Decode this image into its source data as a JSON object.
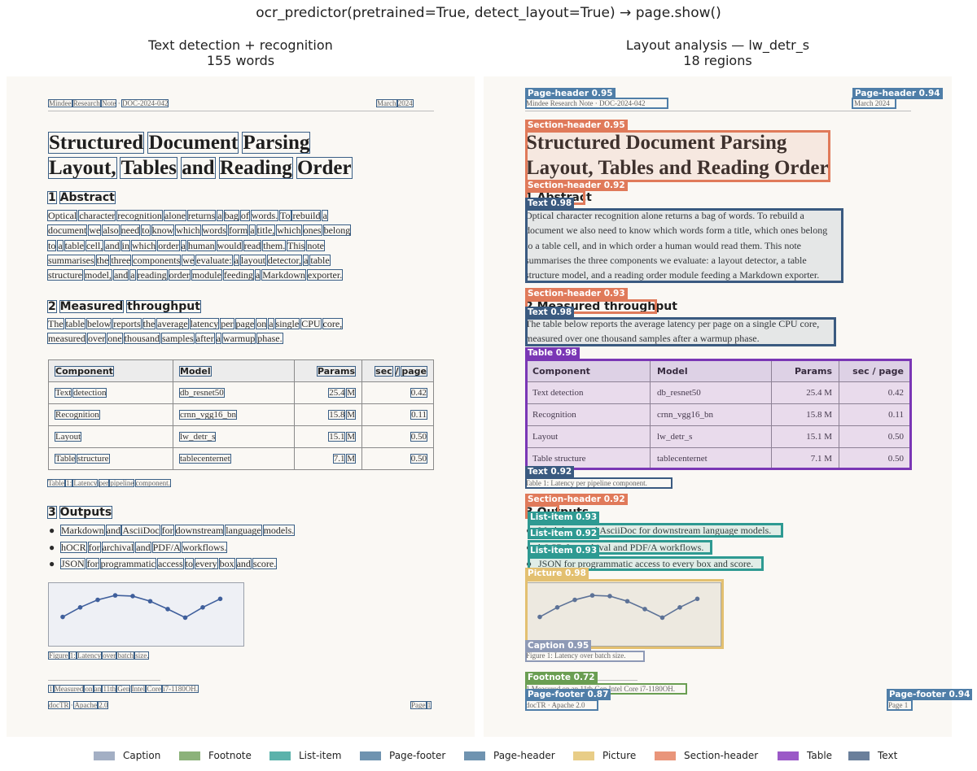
{
  "suptitle": "ocr_predictor(pretrained=True, detect_layout=True)  →  page.show()",
  "left_panel": {
    "title_line1": "Text detection + recognition",
    "title_line2": "155 words"
  },
  "right_panel": {
    "title_line1": "Layout analysis — lw_detr_s",
    "title_line2": "18 regions"
  },
  "doc": {
    "header_left": "Mindee Research Note  ·  DOC-2024-042",
    "header_right": "March 2024",
    "title_line1": "Structured Document Parsing",
    "title_line2": "Layout, Tables and Reading Order",
    "sec1": "1  Abstract",
    "abstract": [
      "Optical character recognition alone returns a bag of words. To rebuild a",
      "document we also need to know which words form a title, which ones belong",
      "to a table cell, and in which order a human would read them. This note",
      "summarises the three components we evaluate: a layout detector, a table",
      "structure model, and a reading order module feeding a Markdown exporter."
    ],
    "sec2": "2  Measured throughput",
    "throughput": [
      "The table below reports the average latency per page on a single CPU core,",
      "measured over one thousand samples after a warmup phase."
    ],
    "table_header": [
      "Component",
      "Model",
      "Params",
      "sec / page"
    ],
    "table_rows": [
      [
        "Text detection",
        "db_resnet50",
        "25.4 M",
        "0.42"
      ],
      [
        "Recognition",
        "crnn_vgg16_bn",
        "15.8 M",
        "0.11"
      ],
      [
        "Layout",
        "lw_detr_s",
        "15.1 M",
        "0.50"
      ],
      [
        "Table structure",
        "tablecenternet",
        "7.1 M",
        "0.50"
      ]
    ],
    "table_caption": "Table 1: Latency per pipeline component.",
    "sec3": "3  Outputs",
    "bullets": [
      "Markdown and AsciiDoc for downstream language models.",
      "hOCR for archival and PDF/A workflows.",
      "JSON for programmatic access to every box and score."
    ],
    "figure_caption": "Figure 1: Latency over batch size.",
    "footnote": "1  Measured on an 11th Gen Intel Core i7-1180OH.",
    "footer_left": "docTR  ·  Apache 2.0",
    "footer_right": "Page 1",
    "figure_series": [
      0.32,
      0.6,
      0.82,
      0.95,
      0.93,
      0.78,
      0.55,
      0.3,
      0.6,
      0.85
    ]
  },
  "right_labels": {
    "page_header_left": "Page-header 0.95",
    "page_header_right": "Page-header 0.94",
    "section_header_title": "Section-header 0.95",
    "section_header_1": "Section-header 0.92",
    "text_abstract": "Text 0.98",
    "section_header_2": "Section-header 0.93",
    "text_throughput": "Text 0.98",
    "table": "Table 0.98",
    "text_caption": "Text 0.92",
    "section_header_3": "Section-header 0.92",
    "list_item_1": "List-item 0.93",
    "list_item_2": "List-item 0.92",
    "list_item_3": "List-item 0.93",
    "picture": "Picture 0.98",
    "caption": "Caption 0.95",
    "footnote": "Footnote 0.72",
    "page_footer_left": "Page-footer 0.87",
    "page_footer_right": "Page-footer 0.94"
  },
  "legend": [
    {
      "label": "Caption",
      "color": "#a3afc4"
    },
    {
      "label": "Footnote",
      "color": "#8cb27a"
    },
    {
      "label": "List-item",
      "color": "#5bb2ab"
    },
    {
      "label": "Page-footer",
      "color": "#6f93b0"
    },
    {
      "label": "Page-header",
      "color": "#6f93b0"
    },
    {
      "label": "Picture",
      "color": "#e8cd87"
    },
    {
      "label": "Section-header",
      "color": "#e9957a"
    },
    {
      "label": "Table",
      "color": "#9b59c7"
    },
    {
      "label": "Text",
      "color": "#6a7f9b"
    }
  ]
}
